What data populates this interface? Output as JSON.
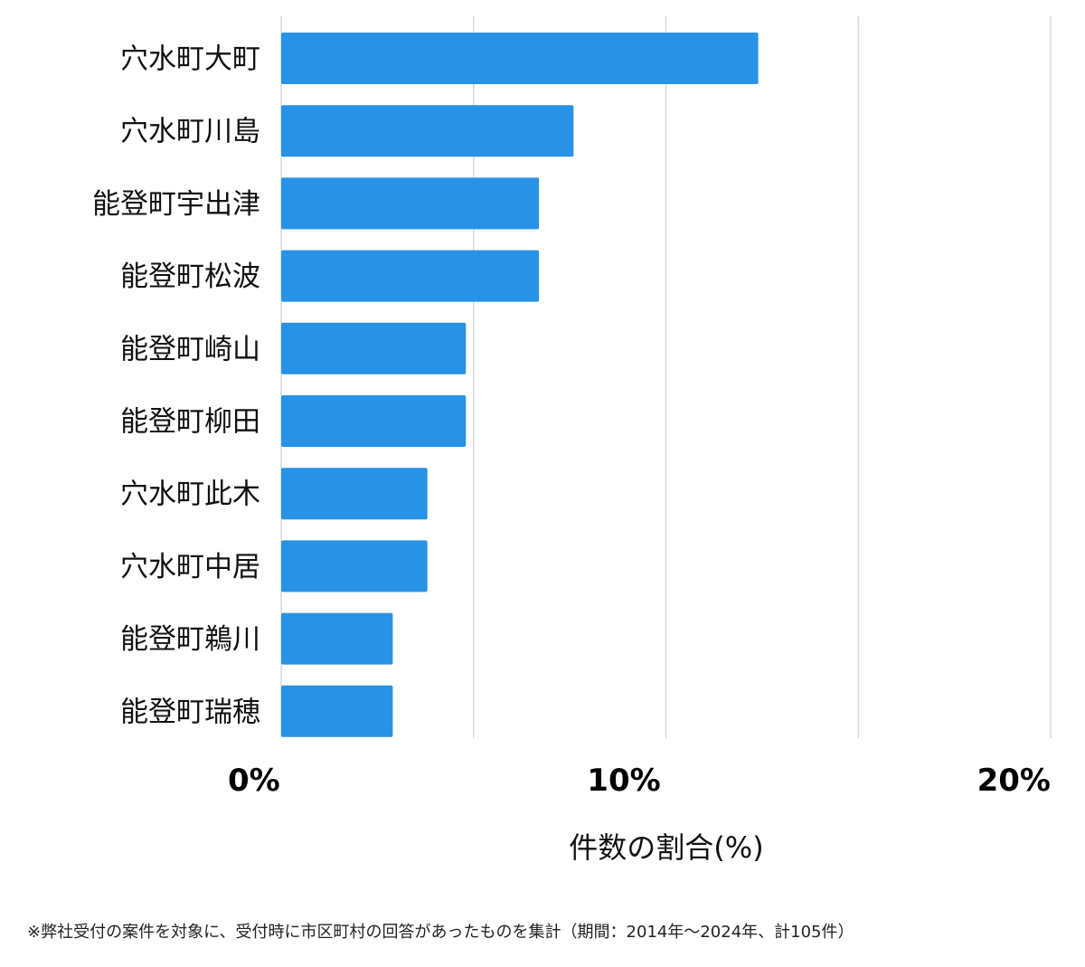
{
  "chart_data": {
    "type": "bar",
    "orientation": "horizontal",
    "categories": [
      "穴水町大町",
      "穴水町川島",
      "能登町宇出津",
      "能登町松波",
      "能登町崎山",
      "能登町柳田",
      "穴水町此木",
      "穴水町中居",
      "能登町鵜川",
      "能登町瑞穂"
    ],
    "values": [
      12.4,
      7.6,
      6.7,
      6.7,
      4.8,
      4.8,
      3.8,
      3.8,
      2.9,
      2.9
    ],
    "xlim": [
      0,
      20
    ],
    "x_ticks": [
      0,
      10,
      20
    ],
    "x_tick_labels": [
      "0%",
      "10%",
      "20%"
    ],
    "x_grid": [
      0,
      5,
      10,
      15,
      20
    ],
    "xlabel": "件数の割合(%)",
    "grid": true,
    "bar_color": "#2892e6",
    "grid_color": "#d9d9d9"
  },
  "footnote": "※弊社受付の案件を対象に、受付時に市区町村の回答があったものを集計（期間：2014年～2024年、計105件）"
}
